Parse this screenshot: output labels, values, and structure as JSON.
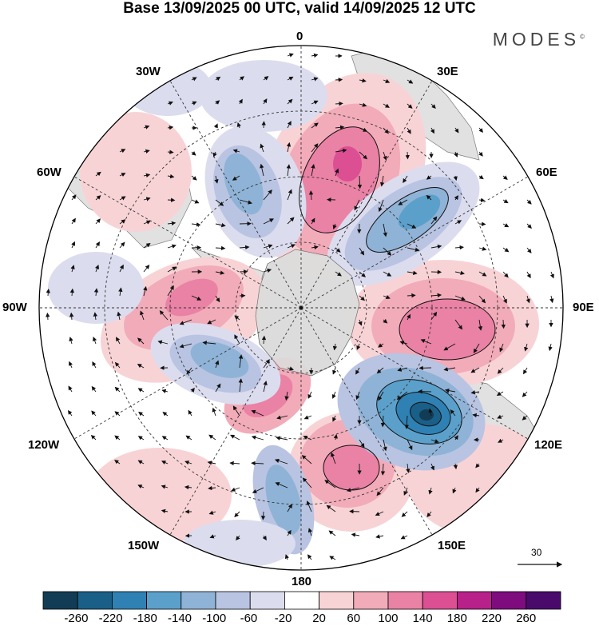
{
  "title": "Base 13/09/2025 00 UTC, valid 14/09/2025 12 UTC",
  "brand": "MODES",
  "brand_mark": "©",
  "lon_labels": {
    "n": "0",
    "e30": "30E",
    "e60": "60E",
    "e90": "90E",
    "e120": "120E",
    "e150": "150E",
    "s": "180",
    "w150": "150W",
    "w120": "120W",
    "w90": "90W",
    "w60": "60W",
    "w30": "30W"
  },
  "reference_vector": "30",
  "colorbar": {
    "labels": [
      "-260",
      "-220",
      "-180",
      "-140",
      "-100",
      "-60",
      "-20",
      "20",
      "60",
      "100",
      "140",
      "180",
      "220",
      "260"
    ],
    "colors": [
      "#123c55",
      "#1a5f87",
      "#2f81b3",
      "#5ba0cb",
      "#8fb3d6",
      "#b9c4e2",
      "#dcdcef",
      "#ffffff",
      "#f8d3d6",
      "#f2abb9",
      "#ea82a5",
      "#dc4f93",
      "#b8208a",
      "#7e0c7f",
      "#4a0a6b"
    ]
  },
  "colors": {
    "land": "#dcdcdc",
    "coast": "#555555",
    "grid": "#333333",
    "arrow": "#111111"
  }
}
